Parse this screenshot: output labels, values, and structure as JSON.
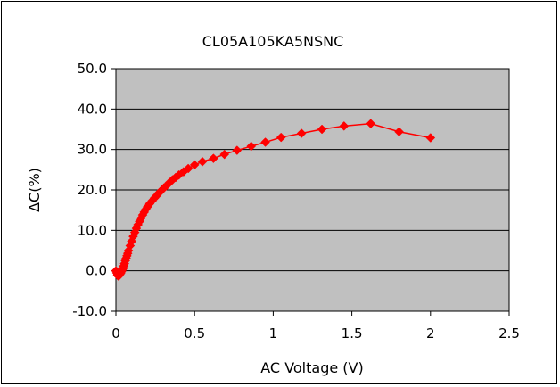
{
  "chart_data": {
    "type": "scatter",
    "title": "CL05A105KA5NSNC",
    "xlabel": "AC Voltage (V)",
    "ylabel": "ΔC(%)",
    "xlim": [
      0,
      2.5
    ],
    "ylim": [
      -10,
      50
    ],
    "x_ticks": [
      "0",
      "0.5",
      "1",
      "1.5",
      "2",
      "2.5"
    ],
    "y_ticks": [
      "-10.0",
      "0.0",
      "10.0",
      "20.0",
      "30.0",
      "40.0",
      "50.0"
    ],
    "grid": "horizontal",
    "legend": "none",
    "colors": {
      "series": "#ff0000",
      "plot_background": "#c0c0c0"
    },
    "series": [
      {
        "x": [
          0.0,
          0.005,
          0.01,
          0.015,
          0.02,
          0.025,
          0.03,
          0.035,
          0.04,
          0.045,
          0.05,
          0.055,
          0.06,
          0.065,
          0.07,
          0.075,
          0.08,
          0.09,
          0.1,
          0.11,
          0.12,
          0.13,
          0.14,
          0.15,
          0.16,
          0.17,
          0.18,
          0.19,
          0.2,
          0.215,
          0.23,
          0.245,
          0.26,
          0.275,
          0.29,
          0.305,
          0.32,
          0.34,
          0.36,
          0.38,
          0.4,
          0.43,
          0.46,
          0.5,
          0.55,
          0.62,
          0.69,
          0.77,
          0.86,
          0.95,
          1.05,
          1.18,
          1.31,
          1.45,
          1.62,
          1.8,
          2.0
        ],
        "y": [
          0.0,
          -0.5,
          -1.0,
          -1.3,
          -1.2,
          -0.9,
          -0.6,
          -0.2,
          0.2,
          0.6,
          1.2,
          1.8,
          2.5,
          3.1,
          3.7,
          4.3,
          5.0,
          6.2,
          7.3,
          8.5,
          9.5,
          10.5,
          11.4,
          12.2,
          13.0,
          13.8,
          14.5,
          15.2,
          15.8,
          16.6,
          17.3,
          18.0,
          18.6,
          19.3,
          19.9,
          20.5,
          21.0,
          21.8,
          22.5,
          23.1,
          23.7,
          24.5,
          25.3,
          26.2,
          27.0,
          27.8,
          28.8,
          29.8,
          30.8,
          31.8,
          33.0,
          34.0,
          35.0,
          35.8,
          36.4,
          34.4,
          32.9
        ]
      }
    ]
  }
}
